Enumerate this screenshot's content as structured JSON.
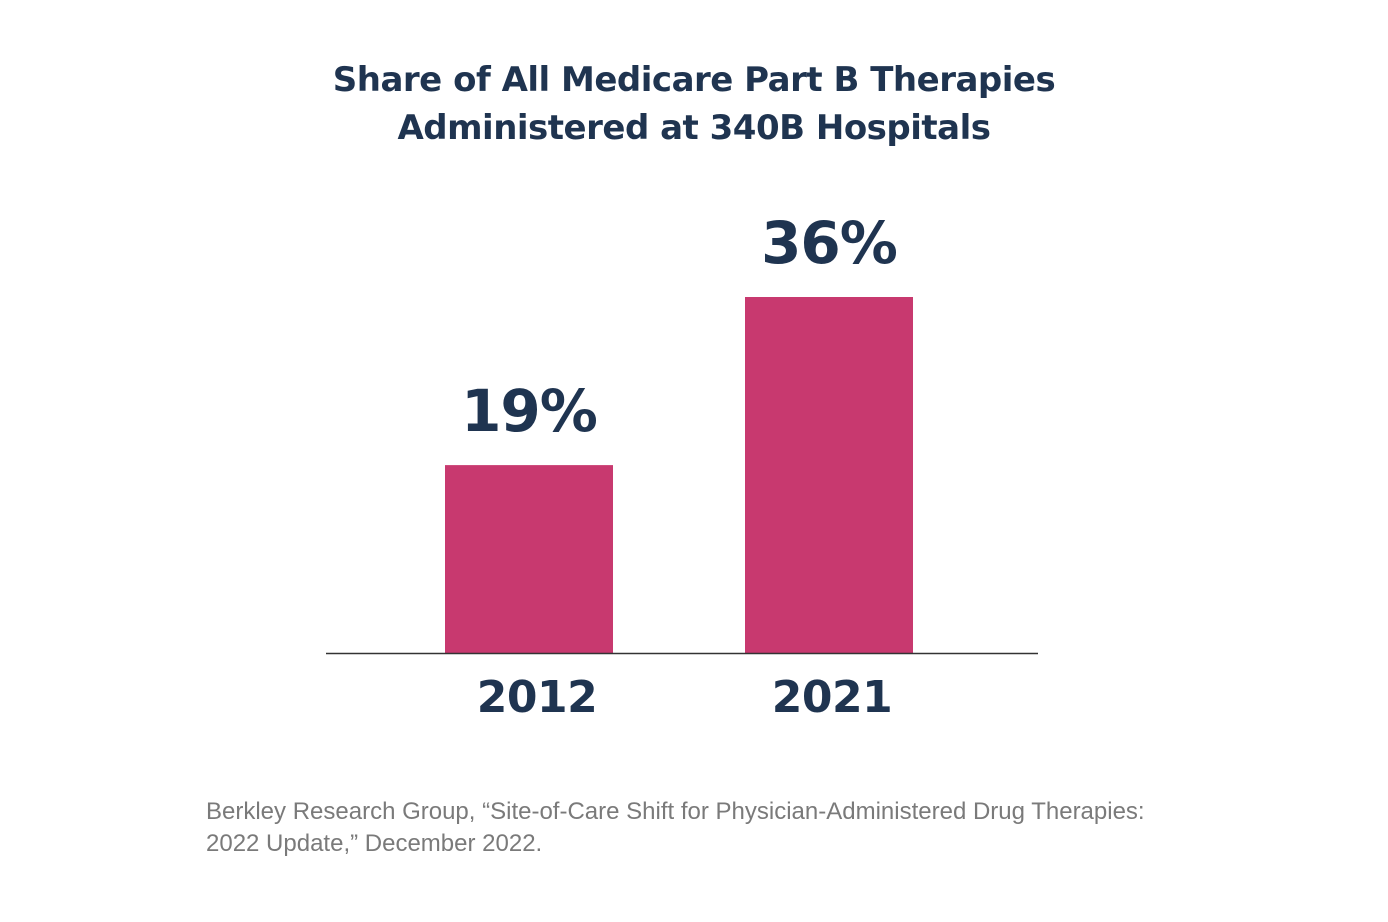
{
  "chart_data": {
    "type": "bar",
    "title_lines": [
      "Share of All Medicare Part B Therapies",
      "Administered at 340B Hospitals"
    ],
    "categories": [
      "2012",
      "2021"
    ],
    "values": [
      19,
      36
    ],
    "value_labels": [
      "19%",
      "36%"
    ],
    "xlabel": "",
    "ylabel": "",
    "unit": "%",
    "grid": false,
    "bar_color": "#c8396f",
    "text_color": "#1f3450",
    "axis_color": "#333333"
  },
  "source_lines": [
    "Berkley Research Group, “Site-of-Care Shift for Physician-Administered Drug Therapies:",
    "2022 Update,” December 2022."
  ]
}
